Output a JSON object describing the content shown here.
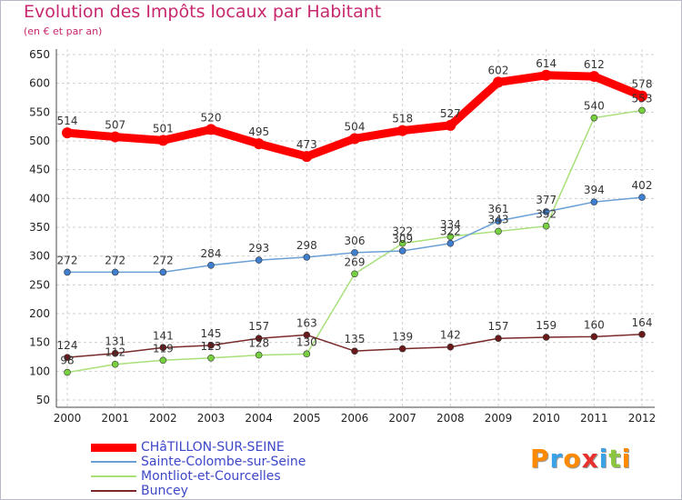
{
  "header": {
    "title": "Evolution des Impôts locaux par Habitant",
    "subtitle": "(en € et par an)"
  },
  "brand": {
    "logo_letters": [
      "P",
      "r",
      "o",
      "x",
      "i",
      "t",
      "i"
    ],
    "logo_colors": [
      "#ff8a00",
      "#3aa3e8",
      "#ff8a00",
      "#e6312e",
      "#3aa3e8",
      "#8cc63f",
      "#ff8a00"
    ]
  },
  "colors": {
    "title": "#c8286e",
    "axis_labels": "#222222",
    "grid": "#d0d0d0",
    "legend_text": "#3e47c8"
  },
  "chart_data": {
    "type": "line",
    "title": "Evolution des Impôts locaux par Habitant",
    "subtitle": "(en € et par an)",
    "xlabel": "",
    "ylabel": "",
    "x": [
      2000,
      2001,
      2002,
      2003,
      2004,
      2005,
      2006,
      2007,
      2008,
      2009,
      2010,
      2011,
      2012
    ],
    "ylim": [
      50,
      650
    ],
    "yticks": [
      50,
      100,
      150,
      200,
      250,
      300,
      350,
      400,
      450,
      500,
      550,
      600,
      650
    ],
    "grid": true,
    "legend_position": "bottom-left",
    "series": [
      {
        "name": "CHâTILLON-SUR-SEINE",
        "values": [
          514,
          507,
          501,
          520,
          495,
          473,
          504,
          518,
          527,
          602,
          614,
          612,
          578
        ],
        "color": "#ff0000",
        "width": 9,
        "marker_color": "#ff0000"
      },
      {
        "name": "Sainte-Colombe-sur-Seine",
        "values": [
          272,
          272,
          272,
          284,
          293,
          298,
          306,
          309,
          322,
          361,
          377,
          394,
          402
        ],
        "color": "#6aa0d6",
        "width": 1.5,
        "marker_color": "#3f7fd0"
      },
      {
        "name": "Montliot-et-Courcelles",
        "values": [
          98,
          112,
          119,
          123,
          128,
          130,
          269,
          322,
          334,
          343,
          352,
          540,
          553
        ],
        "color": "#a8e07a",
        "width": 1.5,
        "marker_color": "#77d040"
      },
      {
        "name": "Buncey",
        "values": [
          124,
          131,
          141,
          145,
          157,
          163,
          135,
          139,
          142,
          157,
          159,
          160,
          164
        ],
        "color": "#7a2a2a",
        "width": 1.5,
        "marker_color": "#6a1a1a"
      }
    ]
  },
  "legend": {
    "items": [
      {
        "label": "CHâTILLON-SUR-SEINE",
        "color": "#ff0000",
        "width": 9
      },
      {
        "label": "Sainte-Colombe-sur-Seine",
        "color": "#6aa0d6",
        "width": 2
      },
      {
        "label": "Montliot-et-Courcelles",
        "color": "#a8e07a",
        "width": 2
      },
      {
        "label": "Buncey",
        "color": "#7a2a2a",
        "width": 2
      }
    ]
  }
}
